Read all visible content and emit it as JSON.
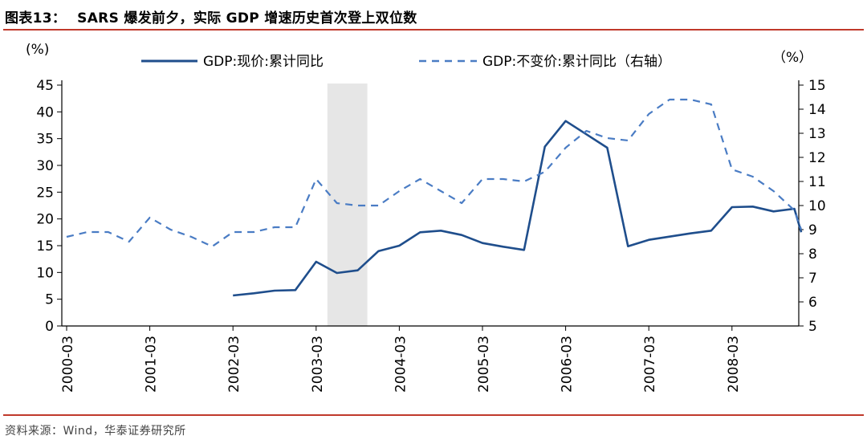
{
  "figure": {
    "title_num": "图表13：",
    "title_text": "SARS 爆发前夕，实际 GDP 增速历史首次登上双位数",
    "source": "资料来源：Wind，华泰证券研究所"
  },
  "colors": {
    "accent_rule": "#c0392b",
    "series_nominal": "#1f4e8c",
    "series_real": "#4a7cc4",
    "shade": "#e6e6e6"
  },
  "chart_data": {
    "type": "line",
    "yleft_label": "(%)",
    "yright_label": "（%）",
    "yleft_lim": [
      0,
      45
    ],
    "yleft_ticks": [
      0,
      5,
      10,
      15,
      20,
      25,
      30,
      35,
      40,
      45
    ],
    "yright_lim": [
      5,
      15
    ],
    "yright_ticks": [
      5,
      6,
      7,
      8,
      9,
      10,
      11,
      12,
      13,
      14,
      15
    ],
    "x_ticks": [
      "2000-03",
      "2001-03",
      "2002-03",
      "2003-03",
      "2004-03",
      "2005-03",
      "2006-03",
      "2007-03",
      "2008-03"
    ],
    "shaded_range": [
      "2003-03",
      "2003-09"
    ],
    "grid": false,
    "legend_position": "top",
    "series": [
      {
        "name": "GDP:现价:累计同比",
        "axis": "left",
        "style": "solid",
        "points": [
          [
            "2002-03",
            5.7
          ],
          [
            "2002-06",
            6.1
          ],
          [
            "2002-09",
            6.6
          ],
          [
            "2002-12",
            6.7
          ],
          [
            "2003-03",
            12.0
          ],
          [
            "2003-06",
            9.9
          ],
          [
            "2003-09",
            10.4
          ],
          [
            "2003-12",
            14.0
          ],
          [
            "2004-03",
            15.0
          ],
          [
            "2004-06",
            17.5
          ],
          [
            "2004-09",
            17.8
          ],
          [
            "2004-12",
            17.0
          ],
          [
            "2005-03",
            15.5
          ],
          [
            "2005-06",
            14.8
          ],
          [
            "2005-09",
            14.2
          ],
          [
            "2005-12",
            33.5
          ],
          [
            "2006-03",
            38.3
          ],
          [
            "2006-06",
            35.8
          ],
          [
            "2006-09",
            33.3
          ],
          [
            "2006-12",
            14.9
          ],
          [
            "2007-03",
            16.1
          ],
          [
            "2007-06",
            16.7
          ],
          [
            "2007-09",
            17.3
          ],
          [
            "2007-12",
            17.8
          ],
          [
            "2008-03",
            22.2
          ],
          [
            "2008-06",
            22.3
          ],
          [
            "2008-09",
            21.4
          ],
          [
            "2008-12",
            21.9
          ],
          [
            "2009-01",
            17.5
          ]
        ]
      },
      {
        "name": "GDP:不变价:累计同比（右轴）",
        "axis": "right",
        "style": "dashed",
        "points": [
          [
            "2000-03",
            8.7
          ],
          [
            "2000-06",
            8.9
          ],
          [
            "2000-09",
            8.9
          ],
          [
            "2000-12",
            8.5
          ],
          [
            "2001-03",
            9.5
          ],
          [
            "2001-06",
            9.0
          ],
          [
            "2001-09",
            8.7
          ],
          [
            "2001-12",
            8.3
          ],
          [
            "2002-03",
            8.9
          ],
          [
            "2002-06",
            8.9
          ],
          [
            "2002-09",
            9.1
          ],
          [
            "2002-12",
            9.1
          ],
          [
            "2003-03",
            11.1
          ],
          [
            "2003-06",
            10.1
          ],
          [
            "2003-09",
            10.0
          ],
          [
            "2003-12",
            10.0
          ],
          [
            "2004-03",
            10.6
          ],
          [
            "2004-06",
            11.1
          ],
          [
            "2004-09",
            10.6
          ],
          [
            "2004-12",
            10.1
          ],
          [
            "2005-03",
            11.1
          ],
          [
            "2005-06",
            11.1
          ],
          [
            "2005-09",
            11.0
          ],
          [
            "2005-12",
            11.4
          ],
          [
            "2006-03",
            12.4
          ],
          [
            "2006-06",
            13.1
          ],
          [
            "2006-09",
            12.8
          ],
          [
            "2006-12",
            12.7
          ],
          [
            "2007-03",
            13.8
          ],
          [
            "2007-06",
            14.4
          ],
          [
            "2007-09",
            14.4
          ],
          [
            "2007-12",
            14.2
          ],
          [
            "2008-03",
            11.5
          ],
          [
            "2008-06",
            11.2
          ],
          [
            "2008-09",
            10.6
          ],
          [
            "2008-12",
            9.8
          ],
          [
            "2009-01",
            9.0
          ]
        ]
      }
    ]
  }
}
